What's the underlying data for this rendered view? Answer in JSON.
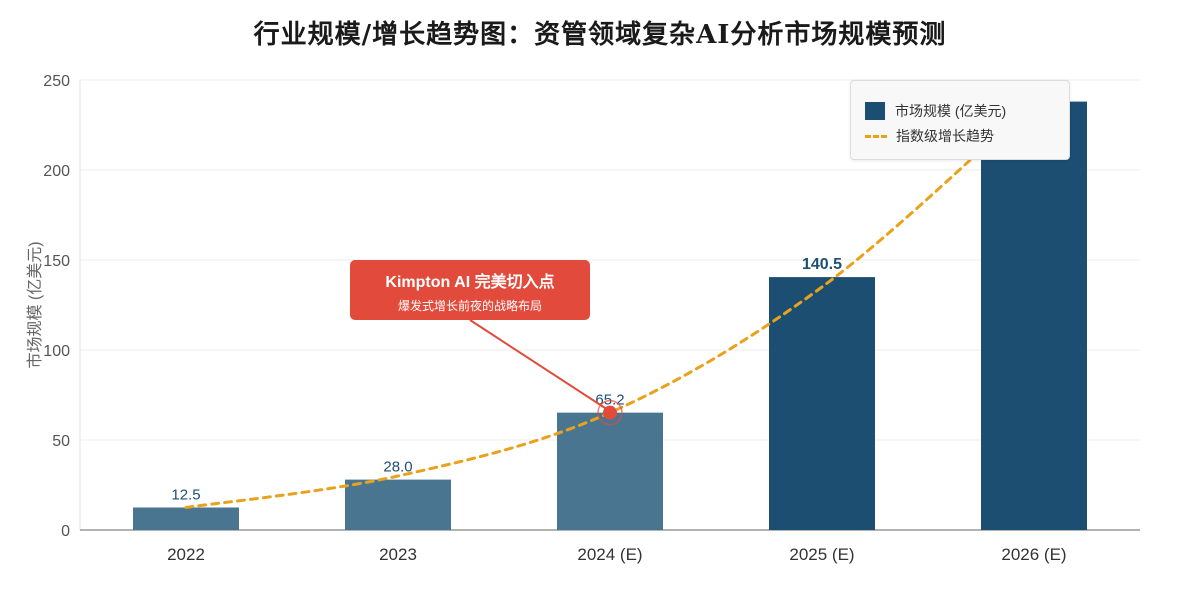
{
  "chart_data": {
    "type": "bar",
    "title": "行业规模/增长趋势图：资管领域复杂AI分析市场规模预测",
    "xlabel": "",
    "ylabel": "市场规模 (亿美元)",
    "ylim": [
      0,
      250
    ],
    "yticks": [
      0,
      50,
      100,
      150,
      200,
      250
    ],
    "grid": true,
    "legend_position": "top-right",
    "categories": [
      "2022",
      "2023",
      "2024 (E)",
      "2025 (E)",
      "2026 (E)"
    ],
    "series": [
      {
        "name": "市场规模 (亿美元)",
        "type": "bar",
        "values": [
          12.5,
          28.0,
          65.2,
          140.5,
          238
        ],
        "data_labels": [
          "12.5",
          "28.0",
          "65.2",
          "140.5",
          ""
        ],
        "colors": [
          "#4a7591",
          "#4a7591",
          "#4a7591",
          "#1c4e72",
          "#1c4e72"
        ]
      },
      {
        "name": "指数级增长趋势",
        "type": "line",
        "style": "dashed",
        "color": "#e8a21c",
        "values": [
          12.5,
          30,
          65.2,
          135,
          238
        ]
      }
    ],
    "annotation": {
      "title": "Kimpton AI 完美切入点",
      "subtitle": "爆发式增长前夜的战略布局",
      "category": "2024 (E)",
      "value": 65.2,
      "color": "#e24a3b"
    }
  }
}
